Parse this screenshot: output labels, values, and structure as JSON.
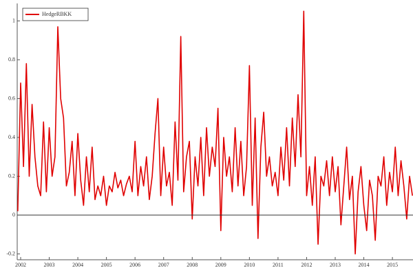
{
  "chart_data": {
    "type": "line",
    "series": [
      {
        "name": "HedgeRBKK",
        "color": "#e00000",
        "values": [
          0.02,
          0.68,
          0.25,
          0.78,
          0.2,
          0.57,
          0.3,
          0.15,
          0.1,
          0.48,
          0.12,
          0.45,
          0.2,
          0.3,
          0.97,
          0.6,
          0.5,
          0.15,
          0.22,
          0.38,
          0.1,
          0.42,
          0.18,
          0.05,
          0.3,
          0.12,
          0.35,
          0.08,
          0.15,
          0.1,
          0.2,
          0.05,
          0.15,
          0.12,
          0.22,
          0.14,
          0.18,
          0.1,
          0.16,
          0.2,
          0.12,
          0.38,
          0.1,
          0.25,
          0.15,
          0.3,
          0.08,
          0.2,
          0.42,
          0.6,
          0.1,
          0.35,
          0.15,
          0.22,
          0.05,
          0.48,
          0.18,
          0.92,
          0.12,
          0.3,
          0.38,
          -0.02,
          0.3,
          0.15,
          0.4,
          0.1,
          0.45,
          0.2,
          0.35,
          0.25,
          0.55,
          -0.08,
          0.4,
          0.2,
          0.3,
          0.12,
          0.45,
          0.15,
          0.38,
          0.1,
          0.25,
          0.77,
          0.05,
          0.5,
          -0.12,
          0.35,
          0.53,
          0.2,
          0.3,
          0.15,
          0.22,
          0.1,
          0.35,
          0.18,
          0.45,
          0.15,
          0.5,
          0.25,
          0.62,
          0.3,
          1.05,
          0.1,
          0.25,
          0.05,
          0.3,
          -0.15,
          0.2,
          0.15,
          0.28,
          0.1,
          0.3,
          0.12,
          0.25,
          -0.05,
          0.15,
          0.35,
          0.08,
          0.2,
          -0.2,
          0.12,
          0.25,
          0.05,
          -0.08,
          0.18,
          0.1,
          -0.13,
          0.2,
          0.15,
          0.3,
          0.05,
          0.22,
          0.12,
          0.35,
          0.1,
          0.28,
          0.15,
          -0.02,
          0.2,
          0.1
        ]
      }
    ],
    "x": [
      2001.9,
      2002.0,
      2002.1,
      2002.2,
      2002.3,
      2002.4,
      2002.5,
      2002.6,
      2002.7,
      2002.8,
      2002.9,
      2003.0,
      2003.1,
      2003.2,
      2003.3,
      2003.4,
      2003.5,
      2003.6,
      2003.7,
      2003.8,
      2003.9,
      2004.0,
      2004.1,
      2004.2,
      2004.3,
      2004.4,
      2004.5,
      2004.6,
      2004.7,
      2004.8,
      2004.9,
      2005.0,
      2005.1,
      2005.2,
      2005.3,
      2005.4,
      2005.5,
      2005.6,
      2005.7,
      2005.8,
      2005.9,
      2006.0,
      2006.1,
      2006.2,
      2006.3,
      2006.4,
      2006.5,
      2006.6,
      2006.7,
      2006.8,
      2006.9,
      2007.0,
      2007.1,
      2007.2,
      2007.3,
      2007.4,
      2007.5,
      2007.6,
      2007.7,
      2007.8,
      2007.9,
      2008.0,
      2008.1,
      2008.2,
      2008.3,
      2008.4,
      2008.5,
      2008.6,
      2008.7,
      2008.8,
      2008.9,
      2009.0,
      2009.1,
      2009.2,
      2009.3,
      2009.4,
      2009.5,
      2009.6,
      2009.7,
      2009.8,
      2009.9,
      2010.0,
      2010.1,
      2010.2,
      2010.3,
      2010.4,
      2010.5,
      2010.6,
      2010.7,
      2010.8,
      2010.9,
      2011.0,
      2011.1,
      2011.2,
      2011.3,
      2011.4,
      2011.5,
      2011.6,
      2011.7,
      2011.8,
      2011.9,
      2012.0,
      2012.1,
      2012.2,
      2012.3,
      2012.4,
      2012.5,
      2012.6,
      2012.7,
      2012.8,
      2012.9,
      2013.0,
      2013.1,
      2013.2,
      2013.3,
      2013.4,
      2013.5,
      2013.6,
      2013.7,
      2013.8,
      2013.9,
      2014.0,
      2014.1,
      2014.2,
      2014.3,
      2014.4,
      2014.5,
      2014.6,
      2014.7,
      2014.8,
      2014.9,
      2015.0,
      2015.1,
      2015.2,
      2015.3,
      2015.4,
      2015.5,
      2015.6,
      2015.7
    ],
    "xlim": [
      2001.88,
      2015.72
    ],
    "xticks": [
      2002,
      2003,
      2004,
      2005,
      2006,
      2007,
      2008,
      2009,
      2010,
      2011,
      2012,
      2013,
      2014,
      2015
    ],
    "ylim": [
      -0.23,
      1.09
    ],
    "yticks": [
      -0.2,
      0.0,
      0.2,
      0.4,
      0.6,
      0.8,
      1.0
    ],
    "zero_line": true,
    "legend": "upper left"
  }
}
